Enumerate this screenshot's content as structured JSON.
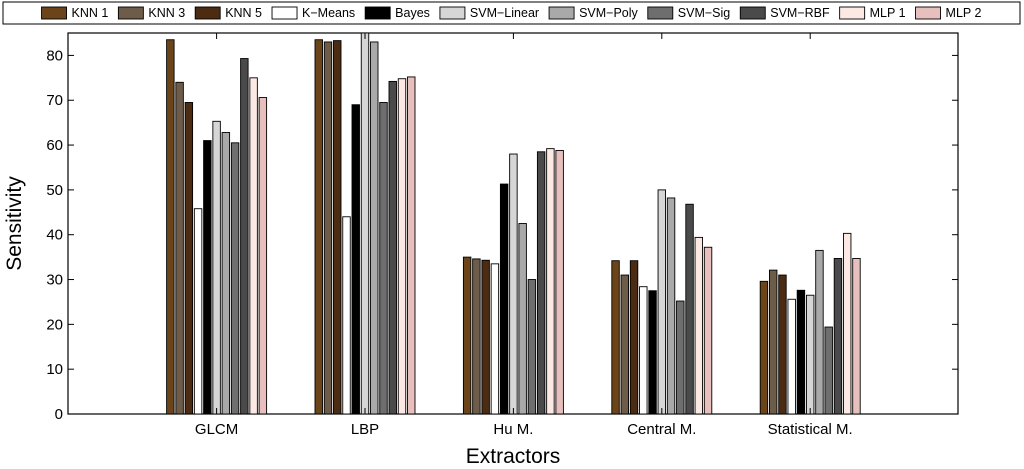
{
  "chart_data": {
    "type": "bar",
    "title": "",
    "xlabel": "Extractors",
    "ylabel": "Sensitivity",
    "ylim": [
      0,
      85
    ],
    "yticks": [
      0,
      10,
      20,
      30,
      40,
      50,
      60,
      70,
      80
    ],
    "grid": false,
    "legend_position": "top",
    "categories": [
      "GLCM",
      "LBP",
      "Hu M.",
      "Central M.",
      "Statistical M."
    ],
    "series": [
      {
        "name": "KNN 1",
        "color": "#6b4519",
        "values": [
          83.5,
          83.5,
          35.0,
          34.2,
          29.6
        ]
      },
      {
        "name": "KNN 3",
        "color": "#6e5c4a",
        "values": [
          74.0,
          83.0,
          34.6,
          31.0,
          32.1
        ]
      },
      {
        "name": "KNN 5",
        "color": "#4b2c13",
        "values": [
          69.5,
          83.3,
          34.3,
          34.2,
          31.0
        ]
      },
      {
        "name": "K−Means",
        "color": "#ffffff",
        "values": [
          45.8,
          44.0,
          33.5,
          28.4,
          25.6
        ]
      },
      {
        "name": "Bayes",
        "color": "#000000",
        "values": [
          61.0,
          69.0,
          51.3,
          27.5,
          27.6
        ]
      },
      {
        "name": "SVM−Linear",
        "color": "#d6d6d6",
        "values": [
          65.3,
          85.0,
          58.0,
          50.0,
          26.5
        ]
      },
      {
        "name": "SVM−Poly",
        "color": "#a9a9a9",
        "values": [
          62.8,
          83.0,
          42.5,
          48.2,
          36.5
        ]
      },
      {
        "name": "SVM−Sig",
        "color": "#6e6e6e",
        "values": [
          60.5,
          69.5,
          30.0,
          25.2,
          19.4
        ]
      },
      {
        "name": "SVM−RBF",
        "color": "#4a4a4a",
        "values": [
          79.3,
          74.2,
          58.5,
          46.8,
          34.7
        ]
      },
      {
        "name": "MLP 1",
        "color": "#fde9e3",
        "values": [
          75.0,
          74.8,
          59.2,
          39.4,
          40.3
        ]
      },
      {
        "name": "MLP 2",
        "color": "#e7bfbc",
        "values": [
          70.6,
          75.2,
          58.8,
          37.2,
          34.7
        ]
      }
    ]
  }
}
